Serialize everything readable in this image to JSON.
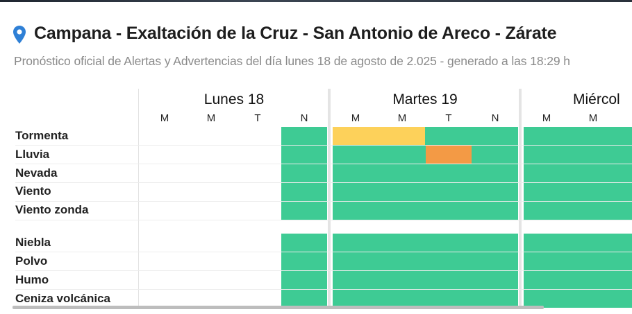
{
  "header": {
    "title": "Campana - Exaltación de la Cruz - San Antonio de Areco - Zárate",
    "subtitle": "Pronóstico oficial de Alertas y Advertencias del día lunes 18 de agosto de 2.025 - generado a las 18:29 h",
    "location_icon": "map-pin-icon"
  },
  "colors": {
    "accent": "#2f80d6",
    "no_alert": "#3ecb94",
    "yellow": "#fdd15a",
    "orange": "#f39a45"
  },
  "days": [
    {
      "label": "Lunes 18",
      "slots": [
        "M",
        "M",
        "T",
        "N"
      ]
    },
    {
      "label": "Martes 19",
      "slots": [
        "M",
        "M",
        "T",
        "N"
      ]
    },
    {
      "label": "Miércol",
      "slots": [
        "M",
        "M"
      ]
    }
  ],
  "phenomena_group1": [
    "Tormenta",
    "Lluvia",
    "Nevada",
    "Viento",
    "Viento zonda"
  ],
  "phenomena_group2": [
    "Niebla",
    "Polvo",
    "Humo",
    "Ceniza volcánica"
  ],
  "alerts": [
    {
      "phenomenon": "Tormenta",
      "day": "Martes 19",
      "slots": "M M",
      "level": "yellow"
    },
    {
      "phenomenon": "Lluvia",
      "day": "Martes 19",
      "slot": "T",
      "level": "orange"
    }
  ],
  "legend_states": [
    "no_alert",
    "yellow",
    "orange"
  ]
}
